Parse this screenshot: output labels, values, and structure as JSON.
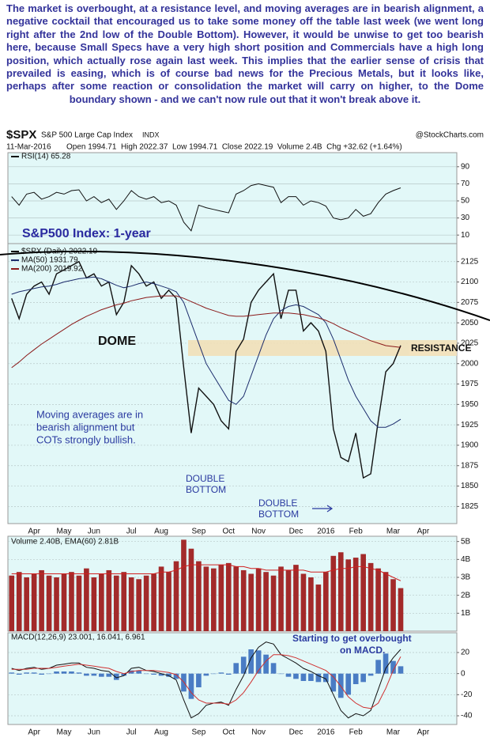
{
  "commentary": "The market is overbought, at a resistance level, and moving averages are in bearish alignment, a negative cocktail that encouraged us to take some money off the table last week (we went long right after the 2nd low of the Double Bottom). However, it would be unwise to get too bearish here, because Small Specs have a very high short position and Commercials have a high long position, which actually rose again last week. This implies that the earlier sense of crisis that prevailed is easing, which is of course bad news for the Precious Metals, but it looks like, perhaps after some reaction or consolidation the market will carry on higher, to the Dome boundary shown - and we can't now rule out that it won't break above it.",
  "header": {
    "symbol": "$SPX",
    "name": "S&P 500 Large Cap Index",
    "exchange": "INDX",
    "source": "@StockCharts.com",
    "date": "11-Mar-2016",
    "quote": "Open 1994.71  High 2022.37  Low 1994.71  Close 2022.19  Volume 2.4B  Chg +32.62 (+1.64%)"
  },
  "chart_data": [
    {
      "type": "line",
      "categories": [
        null,
        null,
        null,
        "Apr",
        null,
        null,
        null,
        "May",
        null,
        null,
        null,
        "Jun",
        null,
        null,
        null,
        null,
        "Jul",
        null,
        null,
        null,
        "Aug",
        null,
        null,
        null,
        null,
        "Sep",
        null,
        null,
        null,
        "Oct",
        null,
        null,
        null,
        "Nov",
        null,
        null,
        null,
        null,
        "Dec",
        null,
        null,
        null,
        "2016",
        null,
        null,
        null,
        "Feb",
        null,
        null,
        null,
        null,
        "Mar",
        null,
        null,
        null,
        "Apr",
        null,
        null,
        null,
        null
      ],
      "ylim": [
        1805,
        2148
      ],
      "yticks": [
        1825,
        1850,
        1875,
        1900,
        1925,
        1950,
        1975,
        2000,
        2025,
        2050,
        2075,
        2100,
        2125
      ],
      "grid": true,
      "series": [
        {
          "name": "$SPX (Daily) 2022.19",
          "color": "#111111",
          "values": [
            2080,
            2055,
            2085,
            2095,
            2100,
            2085,
            2110,
            2115,
            2120,
            2125,
            2105,
            2110,
            2095,
            2100,
            2060,
            2075,
            2120,
            2110,
            2095,
            2100,
            2080,
            2090,
            2080,
            1995,
            1915,
            1970,
            1960,
            1950,
            1930,
            1920,
            2015,
            2030,
            2075,
            2090,
            2100,
            2110,
            2055,
            2090,
            2090,
            2040,
            2050,
            2040,
            2015,
            1920,
            1885,
            1880,
            1915,
            1860,
            1865,
            1930,
            1990,
            2000,
            2022.19,
            null,
            null,
            null,
            null,
            null,
            null,
            null
          ]
        },
        {
          "name": "MA(50) 1931.79",
          "color": "#1c2c6c",
          "values": [
            2085,
            2088,
            2090,
            2092,
            2094,
            2095,
            2097,
            2100,
            2102,
            2104,
            2105,
            2106,
            2104,
            2100,
            2096,
            2093,
            2095,
            2098,
            2100,
            2098,
            2095,
            2092,
            2088,
            2075,
            2050,
            2025,
            2000,
            1985,
            1970,
            1955,
            1950,
            1960,
            1985,
            2010,
            2035,
            2055,
            2065,
            2070,
            2072,
            2070,
            2065,
            2060,
            2050,
            2030,
            2005,
            1980,
            1960,
            1945,
            1930,
            1922,
            1922,
            1926,
            1931.79,
            null,
            null,
            null,
            null,
            null,
            null,
            null
          ]
        },
        {
          "name": "MA(200) 2019.92",
          "color": "#8b1a1a",
          "values": [
            1995,
            2002,
            2010,
            2017,
            2024,
            2030,
            2036,
            2042,
            2048,
            2053,
            2058,
            2062,
            2066,
            2069,
            2072,
            2074,
            2077,
            2079,
            2081,
            2082,
            2083,
            2083,
            2083,
            2080,
            2076,
            2072,
            2068,
            2065,
            2062,
            2059,
            2058,
            2058,
            2059,
            2060,
            2061,
            2062,
            2062,
            2062,
            2061,
            2060,
            2058,
            2056,
            2053,
            2049,
            2044,
            2040,
            2036,
            2032,
            2028,
            2025,
            2022,
            2021,
            2019.92,
            null,
            null,
            null,
            null,
            null,
            null,
            null
          ]
        }
      ],
      "annotations": [
        [
          "S&P500 Index: 1-year"
        ],
        [
          "DOME"
        ],
        [
          "RESISTANCE"
        ],
        [
          "Moving averages are in",
          "bearish alignment but",
          "COTs strongly bullish."
        ],
        [
          "DOUBLE",
          "BOTTOM"
        ],
        [
          "DOUBLE",
          "BOTTOM"
        ]
      ]
    },
    {
      "type": "line",
      "ylim": [
        0,
        100
      ],
      "yticks": [
        10,
        30,
        50,
        70,
        90
      ],
      "grid": true,
      "series": [
        {
          "name": "RSI(14) 65.28",
          "color": "#111111",
          "values": [
            55,
            45,
            58,
            60,
            52,
            55,
            60,
            58,
            62,
            63,
            50,
            55,
            48,
            52,
            40,
            50,
            62,
            55,
            52,
            55,
            48,
            50,
            45,
            25,
            15,
            45,
            42,
            40,
            38,
            36,
            58,
            62,
            68,
            70,
            68,
            66,
            48,
            55,
            55,
            45,
            50,
            48,
            44,
            30,
            28,
            30,
            40,
            32,
            35,
            48,
            58,
            62,
            65.28,
            null,
            null,
            null,
            null,
            null,
            null,
            null
          ]
        }
      ]
    },
    {
      "type": "bar",
      "legend": "Volume 2.40B, EMA(60) 2.81B",
      "ylim": [
        0,
        5.25
      ],
      "yticks": [
        {
          "value": 1,
          "label": "1B"
        },
        {
          "value": 2,
          "label": "2B"
        },
        {
          "value": 3,
          "label": "3B"
        },
        {
          "value": 4,
          "label": "4B"
        },
        {
          "value": 5,
          "label": "5B"
        }
      ],
      "grid": true,
      "series": [
        {
          "type": "bar",
          "color": "#a32a2a",
          "values": [
            3.1,
            3.3,
            3.0,
            3.2,
            3.4,
            3.1,
            3.0,
            3.2,
            3.3,
            3.1,
            3.5,
            3.0,
            3.2,
            3.4,
            3.1,
            3.3,
            3.0,
            2.9,
            3.1,
            3.2,
            3.6,
            3.3,
            3.9,
            5.1,
            4.6,
            3.9,
            3.6,
            3.5,
            3.7,
            3.8,
            3.6,
            3.4,
            3.2,
            3.5,
            3.3,
            3.1,
            3.6,
            3.4,
            3.7,
            3.2,
            3.0,
            2.6,
            3.3,
            4.2,
            4.4,
            4.0,
            4.1,
            4.3,
            3.8,
            3.5,
            3.3,
            2.9,
            2.4,
            null,
            null,
            null,
            null,
            null,
            null,
            null
          ]
        },
        {
          "type": "line",
          "color": "#d02020",
          "values": [
            3.2,
            3.2,
            3.2,
            3.2,
            3.2,
            3.2,
            3.2,
            3.2,
            3.2,
            3.2,
            3.2,
            3.2,
            3.2,
            3.2,
            3.2,
            3.2,
            3.2,
            3.2,
            3.2,
            3.2,
            3.3,
            3.3,
            3.4,
            3.6,
            3.7,
            3.7,
            3.7,
            3.7,
            3.7,
            3.7,
            3.6,
            3.6,
            3.5,
            3.5,
            3.4,
            3.4,
            3.4,
            3.4,
            3.4,
            3.4,
            3.3,
            3.3,
            3.3,
            3.4,
            3.5,
            3.5,
            3.6,
            3.6,
            3.5,
            3.4,
            3.2,
            3.0,
            2.81,
            null,
            null,
            null,
            null,
            null,
            null,
            null
          ]
        }
      ]
    },
    {
      "type": "line",
      "legend": "MACD(12,26,9) 23.001, 16.041, 6.961",
      "categories": [
        null,
        null,
        null,
        "Apr",
        null,
        null,
        null,
        "May",
        null,
        null,
        null,
        "Jun",
        null,
        null,
        null,
        null,
        "Jul",
        null,
        null,
        null,
        "Aug",
        null,
        null,
        null,
        null,
        "Sep",
        null,
        null,
        null,
        "Oct",
        null,
        null,
        null,
        "Nov",
        null,
        null,
        null,
        null,
        "Dec",
        null,
        null,
        null,
        "2016",
        null,
        null,
        null,
        "Feb",
        null,
        null,
        null,
        null,
        "Mar",
        null,
        null,
        null,
        "Apr",
        null,
        null,
        null,
        null
      ],
      "ylim": [
        -47.5,
        38.75
      ],
      "yticks": [
        -40,
        -20,
        0,
        20
      ],
      "grid": true,
      "series": [
        {
          "type": "bar",
          "color": "#4a7cc4",
          "values": [
            1,
            -1,
            1,
            1,
            -1,
            0,
            2,
            2,
            2,
            1,
            -2,
            -2,
            -3,
            -3,
            -6,
            -2,
            3,
            3,
            0,
            -1,
            -2,
            -3,
            -5,
            -17,
            -24,
            -13,
            -2,
            0,
            1,
            -1,
            10,
            16,
            23,
            22,
            18,
            10,
            0,
            -3,
            -5,
            -7,
            -7,
            -8,
            -8,
            -17,
            -23,
            -20,
            -10,
            -8,
            -2,
            13,
            19,
            12,
            6.961,
            null,
            null,
            null,
            null,
            null,
            null,
            null
          ]
        },
        {
          "type": "line",
          "color": "#111111",
          "values": [
            5,
            3,
            5,
            6,
            4,
            5,
            8,
            9,
            10,
            10,
            6,
            5,
            3,
            2,
            -4,
            -2,
            5,
            6,
            3,
            2,
            0,
            -2,
            -6,
            -25,
            -42,
            -38,
            -30,
            -28,
            -27,
            -30,
            -15,
            -2,
            15,
            25,
            30,
            28,
            18,
            14,
            10,
            5,
            2,
            -2,
            -5,
            -20,
            -35,
            -42,
            -38,
            -40,
            -35,
            -15,
            5,
            15,
            23.001,
            null,
            null,
            null,
            null,
            null,
            null,
            null
          ]
        },
        {
          "type": "line",
          "color": "#d03030",
          "values": [
            4,
            4,
            4,
            5,
            5,
            5,
            6,
            7,
            8,
            9,
            8,
            7,
            6,
            5,
            2,
            0,
            2,
            3,
            3,
            3,
            2,
            1,
            -1,
            -8,
            -18,
            -25,
            -28,
            -28,
            -28,
            -29,
            -25,
            -18,
            -8,
            3,
            12,
            18,
            18,
            17,
            15,
            12,
            9,
            6,
            3,
            -3,
            -12,
            -22,
            -28,
            -32,
            -33,
            -28,
            -14,
            3,
            16.041,
            null,
            null,
            null,
            null,
            null,
            null,
            null
          ]
        }
      ],
      "annotations": [
        [
          "Starting to get overbought",
          "on MACD."
        ]
      ]
    }
  ]
}
